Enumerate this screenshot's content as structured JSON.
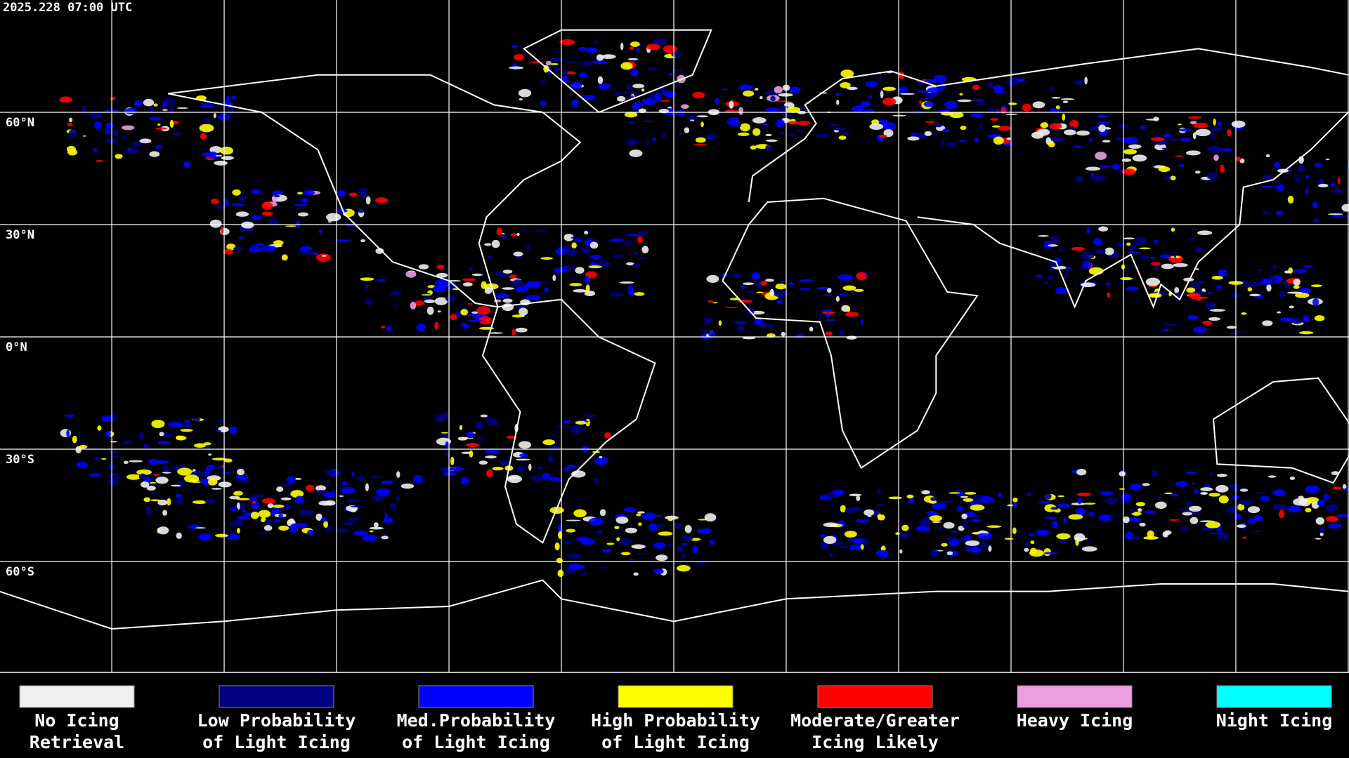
{
  "timestamp": "2025.228 07:00 UTC",
  "lat_labels": [
    "60°N",
    "30°N",
    "0°N",
    "30°S",
    "60°S"
  ],
  "legend": [
    {
      "lines": [
        "No Icing",
        "Retrieval"
      ],
      "color": "#f0f0f0"
    },
    {
      "lines": [
        "Low Probability",
        "of Light Icing"
      ],
      "color": "#000080"
    },
    {
      "lines": [
        "Med.Probability",
        "of Light Icing"
      ],
      "color": "#0000ff"
    },
    {
      "lines": [
        "High Probability",
        "of Light Icing"
      ],
      "color": "#ffff00"
    },
    {
      "lines": [
        "Moderate/Greater",
        "Icing Likely"
      ],
      "color": "#ff0000"
    },
    {
      "lines": [
        "Heavy Icing"
      ],
      "color": "#e8a0e0"
    },
    {
      "lines": [
        "Night Icing"
      ],
      "color": "#00ffff"
    }
  ]
}
